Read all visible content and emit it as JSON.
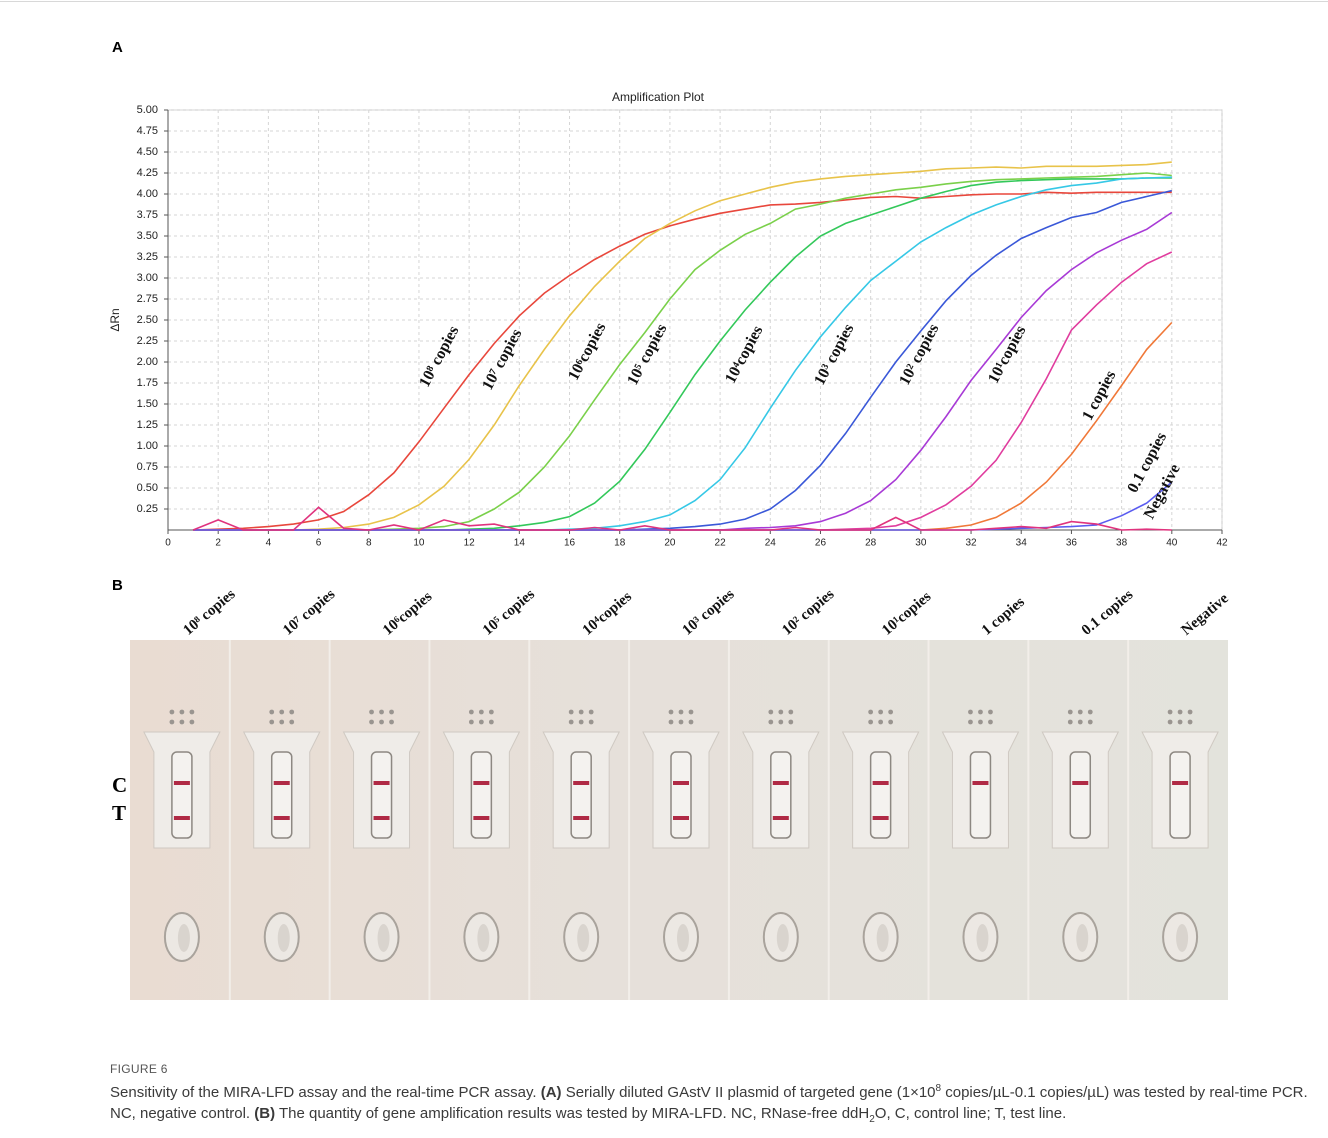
{
  "panel_a_label": "A",
  "chart_data": {
    "type": "line",
    "title": "Amplification Plot",
    "y_label": "ΔRn",
    "x": [
      1,
      2,
      3,
      4,
      5,
      6,
      7,
      8,
      9,
      10,
      11,
      12,
      13,
      14,
      15,
      16,
      17,
      18,
      19,
      20,
      21,
      22,
      23,
      24,
      25,
      26,
      27,
      28,
      29,
      30,
      31,
      32,
      33,
      34,
      35,
      36,
      37,
      38,
      39,
      40
    ],
    "xlim": [
      0,
      42
    ],
    "xticks": [
      0,
      2,
      4,
      6,
      8,
      10,
      12,
      14,
      16,
      18,
      20,
      22,
      24,
      26,
      28,
      30,
      32,
      34,
      36,
      38,
      40,
      42
    ],
    "ylim": [
      0,
      5
    ],
    "yticks": [
      {
        "value": 0.25,
        "label": "0.25"
      },
      {
        "value": 0.5,
        "label": "0.50"
      },
      {
        "value": 0.75,
        "label": "0.75"
      },
      {
        "value": 1,
        "label": "1.00"
      },
      {
        "value": 1.25,
        "label": "1.25"
      },
      {
        "value": 1.5,
        "label": "1.50"
      },
      {
        "value": 1.75,
        "label": "1.75"
      },
      {
        "value": 2,
        "label": "2.00"
      },
      {
        "value": 2.25,
        "label": "2.25"
      },
      {
        "value": 2.5,
        "label": "2.50"
      },
      {
        "value": 2.75,
        "label": "2.75"
      },
      {
        "value": 3,
        "label": "3.00"
      },
      {
        "value": 3.25,
        "label": "3.25"
      },
      {
        "value": 3.5,
        "label": "3.50"
      },
      {
        "value": 3.75,
        "label": "3.75"
      },
      {
        "value": 4,
        "label": "4.00"
      },
      {
        "value": 4.25,
        "label": "4.25"
      },
      {
        "value": 4.5,
        "label": "4.50"
      },
      {
        "value": 4.75,
        "label": "4.75"
      },
      {
        "value": 5,
        "label": "5.00"
      }
    ],
    "grid": true,
    "series": [
      {
        "name": "10⁸ copies",
        "color": "#e8473c",
        "values": [
          0,
          0.01,
          0.02,
          0.04,
          0.07,
          0.12,
          0.22,
          0.42,
          0.68,
          1.05,
          1.45,
          1.85,
          2.22,
          2.55,
          2.82,
          3.03,
          3.22,
          3.38,
          3.52,
          3.62,
          3.7,
          3.77,
          3.82,
          3.87,
          3.88,
          3.9,
          3.93,
          3.96,
          3.97,
          3.95,
          3.97,
          3.99,
          4,
          4,
          4.02,
          4.01,
          4.02,
          4.02,
          4.02,
          4.02
        ]
      },
      {
        "name": "10⁷ copies",
        "color": "#e8c34a",
        "values": [
          0,
          0,
          0,
          0,
          0,
          0.01,
          0.03,
          0.07,
          0.15,
          0.3,
          0.52,
          0.84,
          1.25,
          1.72,
          2.15,
          2.55,
          2.9,
          3.2,
          3.47,
          3.65,
          3.8,
          3.92,
          4,
          4.08,
          4.14,
          4.18,
          4.21,
          4.23,
          4.25,
          4.27,
          4.3,
          4.31,
          4.32,
          4.31,
          4.33,
          4.33,
          4.33,
          4.34,
          4.35,
          4.38
        ]
      },
      {
        "name": "10⁶copies",
        "color": "#7ad04a",
        "values": [
          0,
          0,
          0,
          0,
          0,
          0,
          0,
          0,
          0.01,
          0.02,
          0.04,
          0.1,
          0.25,
          0.45,
          0.75,
          1.12,
          1.55,
          1.97,
          2.35,
          2.75,
          3.1,
          3.33,
          3.52,
          3.65,
          3.82,
          3.88,
          3.95,
          4,
          4.05,
          4.08,
          4.12,
          4.15,
          4.17,
          4.18,
          4.19,
          4.2,
          4.21,
          4.23,
          4.25,
          4.22
        ]
      },
      {
        "name": "10⁵ copies",
        "color": "#33c85a",
        "values": [
          0,
          0,
          0,
          0,
          0,
          0,
          0,
          0,
          0,
          0,
          0,
          0.01,
          0.02,
          0.05,
          0.09,
          0.16,
          0.32,
          0.58,
          0.96,
          1.4,
          1.85,
          2.25,
          2.62,
          2.95,
          3.25,
          3.5,
          3.65,
          3.75,
          3.85,
          3.95,
          4.03,
          4.1,
          4.14,
          4.16,
          4.17,
          4.18,
          4.18,
          4.18,
          4.19,
          4.19
        ]
      },
      {
        "name": "10⁴copies",
        "color": "#36c8e6",
        "values": [
          0,
          0,
          0,
          0,
          0,
          0,
          0,
          0,
          0,
          0,
          0,
          0,
          0,
          0,
          0,
          0.01,
          0.02,
          0.05,
          0.1,
          0.18,
          0.35,
          0.6,
          0.98,
          1.45,
          1.9,
          2.3,
          2.65,
          2.97,
          3.2,
          3.43,
          3.6,
          3.75,
          3.87,
          3.97,
          4.05,
          4.1,
          4.13,
          4.18,
          4.19,
          4.2
        ]
      },
      {
        "name": "10³ copies",
        "color": "#3a58d8",
        "values": [
          0,
          0,
          0,
          0,
          0,
          0,
          0,
          0,
          0,
          0,
          0,
          0,
          0,
          0,
          0,
          0,
          0,
          0,
          0.01,
          0.02,
          0.04,
          0.07,
          0.13,
          0.25,
          0.47,
          0.77,
          1.15,
          1.58,
          2,
          2.37,
          2.73,
          3.03,
          3.27,
          3.47,
          3.6,
          3.72,
          3.78,
          3.9,
          3.97,
          4.04
        ]
      },
      {
        "name": "10² copies",
        "color": "#a83ad6",
        "values": [
          0,
          0,
          0,
          0,
          0,
          0,
          0,
          0,
          0,
          0,
          0,
          0,
          0,
          0,
          0,
          0,
          0,
          0,
          0,
          0,
          0,
          0,
          0.02,
          0.03,
          0.05,
          0.1,
          0.2,
          0.35,
          0.6,
          0.95,
          1.35,
          1.78,
          2.15,
          2.53,
          2.85,
          3.1,
          3.3,
          3.45,
          3.58,
          3.78
        ]
      },
      {
        "name": "10¹copies",
        "color": "#e03c9e",
        "values": [
          0,
          0,
          0,
          0,
          0,
          0,
          0,
          0,
          0,
          0,
          0,
          0,
          0,
          0,
          0,
          0,
          0,
          0,
          0,
          0,
          0,
          0,
          0,
          0,
          0,
          0,
          0.01,
          0.02,
          0.05,
          0.15,
          0.3,
          0.52,
          0.83,
          1.28,
          1.8,
          2.38,
          2.68,
          2.95,
          3.17,
          3.31
        ]
      },
      {
        "name": "1 copies",
        "color": "#f07838",
        "values": [
          0,
          0,
          0,
          0,
          0,
          0,
          0,
          0,
          0,
          0,
          0,
          0,
          0,
          0,
          0,
          0,
          0,
          0,
          0,
          0,
          0,
          0,
          0,
          0,
          0,
          0,
          0,
          0,
          0,
          0,
          0.02,
          0.06,
          0.15,
          0.32,
          0.57,
          0.9,
          1.3,
          1.72,
          2.15,
          2.47
        ]
      },
      {
        "name": "0.1 copies",
        "color": "#5a5cf0",
        "values": [
          0,
          0,
          0,
          0,
          0,
          0,
          0,
          0,
          0,
          0,
          0,
          0,
          0,
          0,
          0,
          0,
          0,
          0,
          0,
          0,
          0,
          0,
          0,
          0,
          0,
          0,
          0,
          0,
          0,
          0,
          0,
          0,
          0.01,
          0.02,
          0.03,
          0.04,
          0.06,
          0.17,
          0.32,
          0.57
        ]
      },
      {
        "name": "Negative",
        "color": "#e0337e",
        "values": [
          0,
          0.12,
          0,
          0,
          0,
          0.27,
          0.02,
          0,
          0.06,
          0,
          0.12,
          0.05,
          0.07,
          0,
          0,
          0,
          0.03,
          0,
          0.05,
          0,
          0,
          0,
          0,
          0,
          0.03,
          0,
          0,
          0,
          0.15,
          0,
          0,
          0,
          0.02,
          0.04,
          0.02,
          0.1,
          0.07,
          0,
          0.01,
          0
        ]
      }
    ]
  },
  "panel_b": {
    "label": "B",
    "line_labels": [
      "C",
      "T"
    ],
    "test_line": [
      true,
      true,
      true,
      true,
      true,
      true,
      true,
      true,
      false,
      false,
      false
    ]
  },
  "caption": {
    "figure_label": "FIGURE 6",
    "segments": [
      {
        "text": "Sensitivity of the MIRA-LFD assay and the real-time PCR assay. "
      },
      {
        "text": "(A)",
        "bold": true
      },
      {
        "text": " Serially diluted GAstV II plasmid of targeted gene (1×10"
      },
      {
        "text": "8",
        "sup": true
      },
      {
        "text": " copies/µL-0.1 copies/µL) was tested by real-time PCR. NC, negative control. "
      },
      {
        "text": "(B)",
        "bold": true
      },
      {
        "text": " The quantity of gene amplification results was tested by MIRA-LFD. NC, RNase-free ddH"
      },
      {
        "text": "2",
        "sub": true
      },
      {
        "text": "O, C, control line; T, test line."
      }
    ]
  }
}
